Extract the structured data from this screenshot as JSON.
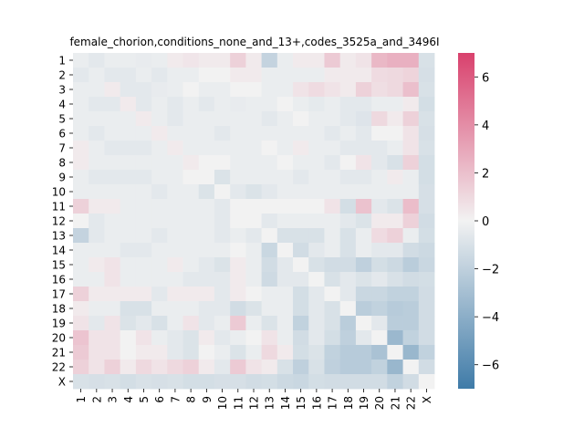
{
  "chart_data": {
    "type": "heatmap",
    "title": "female_chorion,conditions_none_and_13+,codes_3525a_and_3496I",
    "xlabel": "",
    "ylabel": "",
    "x_categories": [
      "1",
      "2",
      "3",
      "4",
      "5",
      "6",
      "7",
      "8",
      "9",
      "10",
      "11",
      "12",
      "13",
      "14",
      "15",
      "16",
      "17",
      "18",
      "19",
      "20",
      "21",
      "22",
      "X"
    ],
    "y_categories": [
      "1",
      "2",
      "3",
      "4",
      "5",
      "6",
      "7",
      "8",
      "9",
      "10",
      "11",
      "12",
      "13",
      "14",
      "15",
      "16",
      "17",
      "18",
      "19",
      "20",
      "21",
      "22",
      "X"
    ],
    "values": [
      [
        -0.3,
        -0.6,
        -0.3,
        -0.3,
        -0.4,
        -0.3,
        0.3,
        0.5,
        0.3,
        0.3,
        1.3,
        0.3,
        -1.8,
        -0.3,
        0.3,
        0.3,
        1.6,
        0.3,
        0.6,
        2.3,
        2.6,
        2.6,
        -1.0
      ],
      [
        -0.6,
        -0.3,
        -0.6,
        -0.6,
        -0.3,
        -0.6,
        -0.3,
        -0.3,
        0.0,
        0.0,
        0.3,
        0.3,
        -0.3,
        -0.3,
        -0.3,
        -0.3,
        0.3,
        0.3,
        0.3,
        0.9,
        1.0,
        1.2,
        -1.1
      ],
      [
        -0.3,
        -0.3,
        0.3,
        -0.6,
        -0.6,
        -0.4,
        -0.3,
        0.0,
        -0.3,
        -0.3,
        0.0,
        0.0,
        -0.3,
        -0.3,
        0.6,
        0.9,
        0.6,
        0.3,
        1.3,
        0.8,
        1.0,
        2.0,
        -1.0
      ],
      [
        -0.3,
        -0.6,
        -0.6,
        0.3,
        -0.6,
        -0.3,
        -0.6,
        -0.3,
        -0.6,
        -0.3,
        -0.4,
        -0.3,
        -0.3,
        0.0,
        -0.3,
        -0.5,
        -0.3,
        -0.6,
        -0.6,
        -0.3,
        -0.3,
        0.3,
        -1.2
      ],
      [
        -0.3,
        -0.3,
        -0.3,
        -0.3,
        0.3,
        -0.3,
        -0.6,
        -0.3,
        -0.3,
        -0.3,
        -0.3,
        -0.3,
        -0.6,
        -0.3,
        0.0,
        -0.3,
        -0.3,
        -0.6,
        -0.8,
        1.0,
        0.3,
        1.3,
        -1.0
      ],
      [
        -0.3,
        -0.6,
        -0.3,
        -0.3,
        -0.3,
        0.3,
        -0.3,
        -0.3,
        -0.3,
        -0.6,
        -0.3,
        -0.3,
        -0.3,
        -0.3,
        -0.3,
        -0.3,
        -0.6,
        -0.3,
        -0.6,
        0.0,
        0.0,
        0.6,
        -1.1
      ],
      [
        0.3,
        -0.3,
        -0.6,
        -0.6,
        -0.6,
        -0.3,
        0.3,
        -0.3,
        -0.3,
        -0.3,
        -0.3,
        -0.3,
        0.0,
        -0.3,
        0.3,
        -0.3,
        -0.3,
        -0.6,
        -0.6,
        -0.6,
        -0.3,
        0.6,
        -1.0
      ],
      [
        0.3,
        -0.3,
        -0.3,
        -0.3,
        -0.3,
        -0.3,
        -0.3,
        0.3,
        0.0,
        0.0,
        -0.3,
        -0.3,
        -0.3,
        0.0,
        -0.3,
        -0.3,
        -0.6,
        0.0,
        0.6,
        -0.6,
        -1.0,
        1.3,
        -1.2
      ],
      [
        -0.3,
        -0.6,
        -0.6,
        -0.6,
        -0.6,
        -0.3,
        -0.3,
        0.0,
        0.0,
        -0.9,
        -0.3,
        -0.3,
        -0.3,
        -0.3,
        -0.6,
        -0.3,
        -0.3,
        -0.6,
        -0.6,
        -0.3,
        0.3,
        -0.3,
        -1.2
      ],
      [
        -0.3,
        -0.3,
        -0.3,
        -0.3,
        -0.3,
        -0.6,
        -0.3,
        -0.3,
        -0.9,
        0.0,
        -0.6,
        -0.9,
        -0.6,
        -0.3,
        -0.3,
        -0.3,
        -0.3,
        -0.3,
        -0.3,
        -0.3,
        -0.3,
        -0.3,
        -1.1
      ],
      [
        1.3,
        0.3,
        0.3,
        -0.3,
        -0.3,
        -0.3,
        -0.3,
        -0.3,
        -0.3,
        -0.6,
        0.0,
        0.0,
        0.0,
        0.0,
        0.0,
        0.0,
        0.6,
        -1.2,
        1.9,
        -0.6,
        -0.9,
        2.1,
        -1.1
      ],
      [
        0.0,
        -0.6,
        -0.3,
        -0.3,
        -0.3,
        -0.3,
        -0.3,
        -0.3,
        -0.3,
        -0.6,
        0.0,
        0.0,
        -0.6,
        -0.3,
        -0.3,
        -0.3,
        -0.3,
        -0.6,
        -0.9,
        0.3,
        0.3,
        1.3,
        -1.3
      ],
      [
        -1.8,
        -0.6,
        -0.3,
        -0.3,
        -0.3,
        -0.6,
        -0.3,
        -0.3,
        -0.3,
        -0.6,
        -0.3,
        -0.6,
        0.0,
        -1.0,
        -1.0,
        -1.0,
        -0.3,
        -1.0,
        -0.3,
        0.9,
        1.3,
        -0.3,
        -1.2
      ],
      [
        -0.3,
        -0.3,
        -0.3,
        -0.6,
        -0.6,
        -0.3,
        -0.3,
        -0.3,
        -0.3,
        -0.3,
        0.0,
        -0.3,
        -1.6,
        0.0,
        -1.3,
        -0.6,
        -0.3,
        -1.0,
        -0.3,
        -0.6,
        -0.6,
        -1.3,
        -1.5
      ],
      [
        -0.3,
        0.3,
        0.6,
        -0.3,
        -0.3,
        -0.3,
        0.3,
        -0.3,
        -0.6,
        -0.9,
        0.3,
        -0.3,
        -1.3,
        -0.6,
        0.0,
        -1.0,
        -1.3,
        -1.3,
        -2.0,
        -1.2,
        -1.5,
        -2.2,
        -1.6
      ],
      [
        -0.3,
        -0.3,
        0.6,
        -0.3,
        -0.3,
        -0.3,
        -0.3,
        -0.6,
        -0.6,
        -0.6,
        0.3,
        -0.3,
        -1.4,
        -0.6,
        -0.6,
        0.0,
        -1.0,
        -0.6,
        -0.9,
        -0.6,
        -1.0,
        -1.3,
        -1.2
      ],
      [
        1.3,
        0.3,
        0.3,
        0.3,
        0.3,
        -0.6,
        0.3,
        0.3,
        0.3,
        -0.6,
        0.3,
        0.0,
        -0.3,
        -0.3,
        -1.2,
        -0.6,
        0.0,
        -0.6,
        -1.6,
        -1.6,
        -1.9,
        -1.9,
        -1.3
      ],
      [
        0.3,
        -0.3,
        -0.3,
        -1.0,
        -1.0,
        -0.3,
        -0.3,
        -0.3,
        -0.6,
        -0.6,
        -1.3,
        -0.9,
        -0.3,
        -0.3,
        -1.2,
        -0.6,
        -1.0,
        0.0,
        -2.2,
        -1.9,
        -2.3,
        -2.2,
        -1.3
      ],
      [
        0.6,
        -0.6,
        0.6,
        -0.9,
        -0.6,
        -1.0,
        -0.3,
        0.6,
        -0.6,
        -0.3,
        1.6,
        -0.3,
        -0.9,
        -0.3,
        -1.9,
        -0.6,
        -1.0,
        -2.2,
        0.0,
        -0.6,
        -2.2,
        -2.2,
        -1.3
      ],
      [
        1.8,
        0.6,
        0.6,
        0.0,
        0.6,
        -0.3,
        -0.6,
        -0.9,
        0.3,
        -0.6,
        -0.3,
        0.0,
        0.6,
        -0.3,
        -1.3,
        -0.6,
        -1.2,
        -2.0,
        -0.6,
        0.0,
        -3.4,
        -1.9,
        -1.3
      ],
      [
        1.6,
        0.6,
        0.6,
        0.0,
        0.3,
        0.3,
        -0.6,
        -0.9,
        0.0,
        -0.3,
        -0.9,
        -0.3,
        1.0,
        0.3,
        -1.2,
        -0.9,
        -1.9,
        -2.3,
        -2.3,
        -2.8,
        0.0,
        -3.5,
        -1.9
      ],
      [
        1.3,
        0.6,
        1.3,
        0.3,
        1.0,
        0.6,
        1.0,
        1.3,
        0.3,
        -0.6,
        1.6,
        0.6,
        0.3,
        -1.0,
        -2.0,
        -1.0,
        -2.0,
        -2.3,
        -2.3,
        -1.9,
        -3.5,
        0.0,
        -1.3
      ],
      [
        -1.0,
        -1.1,
        -1.0,
        -1.2,
        -1.0,
        -1.1,
        -1.0,
        -1.2,
        -1.2,
        -1.1,
        -1.1,
        -1.3,
        -1.2,
        -1.5,
        -1.6,
        -1.2,
        -1.3,
        -1.3,
        -1.3,
        -1.3,
        -1.9,
        -1.3,
        0.0
      ]
    ],
    "colorbar": {
      "min": -7,
      "max": 7,
      "ticks": [
        -6,
        -4,
        -2,
        0,
        2,
        4,
        6
      ]
    },
    "colors": {
      "low": "#3f7ba8",
      "mid": "#f2f2f2",
      "high": "#d9416d"
    },
    "grid": false,
    "legend": "colorbar-right"
  }
}
